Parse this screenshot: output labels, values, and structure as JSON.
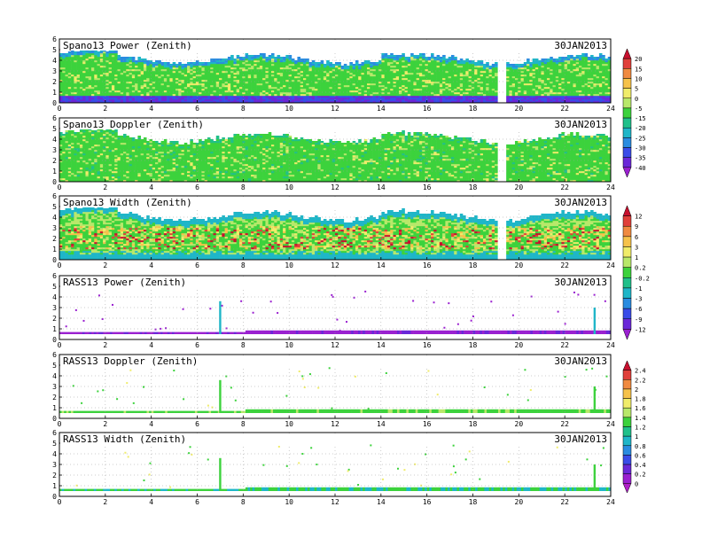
{
  "date_label": "30JAN2013",
  "x_ticks": [
    "0",
    "2",
    "4",
    "6",
    "8",
    "10",
    "12",
    "14",
    "16",
    "18",
    "20",
    "22",
    "24"
  ],
  "y_ticks": [
    "0",
    "1",
    "2",
    "3",
    "4",
    "5",
    "6"
  ],
  "panels": [
    {
      "title": "Spano13 Power (Zenith)",
      "kind": "profiler",
      "scale": 0
    },
    {
      "title": "Spano13 Doppler (Zenith)",
      "kind": "profiler",
      "scale": 1
    },
    {
      "title": "Spano13 Width (Zenith)",
      "kind": "profiler",
      "scale": 2
    },
    {
      "title": "RASS13 Power (Zenith)",
      "kind": "rass",
      "scale": 3
    },
    {
      "title": "RASS13 Doppler (Zenith)",
      "kind": "rass",
      "scale": 4
    },
    {
      "title": "RASS13 Width (Zenith)",
      "kind": "rass",
      "scale": 5
    }
  ],
  "colorbars": [
    {
      "labels": [
        "20",
        "15",
        "10",
        "5",
        "0",
        "-5",
        "-15",
        "-20",
        "-25",
        "-30",
        "-35",
        "-40"
      ],
      "colors": [
        "#c8102e",
        "#e0403a",
        "#f08a40",
        "#f6c24a",
        "#f0ec6a",
        "#b8e86a",
        "#3cd23c",
        "#20c08a",
        "#1fb6c8",
        "#2a8ce0",
        "#3a4ce8",
        "#6a28d8",
        "#9a20d0"
      ]
    },
    {
      "labels": [
        "12",
        "9",
        "6",
        "3",
        "1",
        "0.2",
        "-0.2",
        "-1",
        "-3",
        "-6",
        "-9",
        "-12"
      ],
      "colors": [
        "#c8102e",
        "#e0403a",
        "#f08a40",
        "#f6c24a",
        "#f0ec6a",
        "#b8e86a",
        "#3cd23c",
        "#20c08a",
        "#1fb6c8",
        "#2a8ce0",
        "#3a4ce8",
        "#6a28d8",
        "#9a20d0"
      ]
    },
    {
      "labels": [
        "2.4",
        "2.2",
        "2",
        "1.8",
        "1.6",
        "1.4",
        "1.2",
        "1",
        "0.8",
        "0.6",
        "0.4",
        "0.2",
        "0"
      ],
      "colors": [
        "#c8102e",
        "#e0403a",
        "#f08a40",
        "#f6c24a",
        "#f0ec6a",
        "#b8e86a",
        "#3cd23c",
        "#20c08a",
        "#1fb6c8",
        "#2a8ce0",
        "#3a4ce8",
        "#6a28d8",
        "#9a20d0",
        "#b020c8"
      ]
    }
  ],
  "chart_data": [
    {
      "type": "heatmap",
      "title": "Spano13 Power (Zenith)",
      "x_range": [
        0,
        24
      ],
      "y_range": [
        0,
        6
      ],
      "top_height_approx": [
        4.7,
        4.3,
        4.0,
        4.2,
        4.3
      ],
      "dominant": "green",
      "low_layer": "blue/purple below 1"
    },
    {
      "type": "heatmap",
      "title": "Spano13 Doppler (Zenith)",
      "x_range": [
        0,
        24
      ],
      "y_range": [
        0,
        6
      ],
      "top_height_approx": [
        4.7,
        4.3,
        4.0,
        4.2,
        4.3
      ],
      "dominant": "green"
    },
    {
      "type": "heatmap",
      "title": "Spano13 Width (Zenith)",
      "x_range": [
        0,
        24
      ],
      "y_range": [
        0,
        6
      ],
      "top_height_approx": [
        4.7,
        4.3,
        4.0,
        4.2,
        4.3
      ],
      "dominant": "green with red/yellow 1-3"
    },
    {
      "type": "heatmap",
      "title": "RASS13 Power (Zenith)",
      "x_range": [
        0,
        24
      ],
      "y_range": [
        0,
        6
      ],
      "band_height": 0.7,
      "spikes_at_hours": [
        7.0,
        23.3
      ],
      "dominant": "purple"
    },
    {
      "type": "heatmap",
      "title": "RASS13 Doppler (Zenith)",
      "x_range": [
        0,
        24
      ],
      "y_range": [
        0,
        6
      ],
      "band_height": 0.7,
      "spikes_at_hours": [
        7.0,
        23.3
      ],
      "dominant": "green"
    },
    {
      "type": "heatmap",
      "title": "RASS13 Width (Zenith)",
      "x_range": [
        0,
        24
      ],
      "y_range": [
        0,
        6
      ],
      "band_height": 0.7,
      "spikes_at_hours": [
        7.0,
        23.3
      ],
      "dominant": "green/blue"
    }
  ]
}
